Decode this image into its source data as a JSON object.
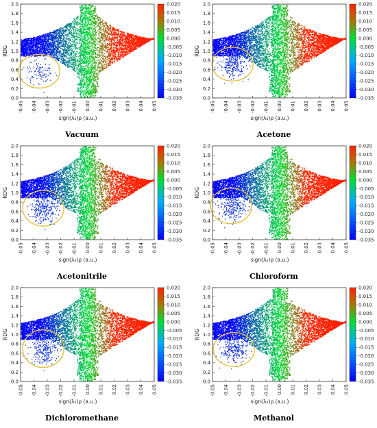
{
  "chart_data": [
    {
      "type": "scatter",
      "title": "Vacuum",
      "xlabel": "sign(λ₂)ρ (a.u.)",
      "ylabel": "RDG",
      "xlim": [
        -0.05,
        0.05
      ],
      "ylim": [
        0,
        2.0
      ],
      "x_ticks": [
        "-0.05",
        "-0.04",
        "-0.03",
        "-0.02",
        "-0.01",
        "0.00",
        "0.01",
        "0.02",
        "0.03",
        "0.04",
        "0.05"
      ],
      "y_ticks": [
        "0.0",
        "0.2",
        "0.4",
        "0.6",
        "0.8",
        "1.0",
        "1.2",
        "1.4",
        "1.6",
        "1.8",
        "2.0"
      ],
      "colorbar": {
        "range": [
          -0.035,
          0.02
        ],
        "ticks": [
          "0.020",
          "0.015",
          "0.010",
          "0.005",
          "0.000",
          "-0.005",
          "-0.010",
          "-0.015",
          "-0.020",
          "-0.025",
          "-0.030",
          "-0.035"
        ]
      },
      "highlight": {
        "center": [
          -0.036,
          0.57
        ],
        "radius_x": 0.011,
        "radius_y": 0.36,
        "color": "#e5c13a"
      },
      "low_rdg_cluster_density": 0.4
    },
    {
      "type": "scatter",
      "title": "Acetone",
      "xlabel": "sign(λ₂)ρ (a.u.)",
      "ylabel": "RDG",
      "xlim": [
        -0.05,
        0.05
      ],
      "ylim": [
        0,
        2.0
      ],
      "x_ticks": [
        "-0.05",
        "-0.04",
        "-0.03",
        "-0.02",
        "-0.01",
        "0.00",
        "0.01",
        "0.02",
        "0.03",
        "0.04",
        "0.05"
      ],
      "y_ticks": [
        "0.0",
        "0.2",
        "0.4",
        "0.6",
        "0.8",
        "1.0",
        "1.2",
        "1.4",
        "1.6",
        "1.8",
        "2.0"
      ],
      "colorbar": {
        "range": [
          -0.035,
          0.02
        ],
        "ticks": [
          "0.020",
          "0.015",
          "0.010",
          "0.005",
          "0.000",
          "-0.005",
          "-0.010",
          "-0.015",
          "-0.020",
          "-0.025",
          "-0.030",
          "-0.035"
        ]
      },
      "highlight": {
        "center": [
          -0.035,
          0.72
        ],
        "radius_x": 0.011,
        "radius_y": 0.36,
        "color": "#e5c13a"
      },
      "low_rdg_cluster_density": 1.0
    },
    {
      "type": "scatter",
      "title": "Acetonitrile",
      "xlabel": "sign(λ₂)ρ (a.u.)",
      "ylabel": "RDG",
      "xlim": [
        -0.05,
        0.05
      ],
      "ylim": [
        0,
        2.0
      ],
      "x_ticks": [
        "-0.05",
        "-0.04",
        "-0.03",
        "-0.02",
        "-0.01",
        "0.00",
        "0.01",
        "0.02",
        "0.03",
        "0.04",
        "0.05"
      ],
      "y_ticks": [
        "0.0",
        "0.2",
        "0.4",
        "0.6",
        "0.8",
        "1.0",
        "1.2",
        "1.4",
        "1.6",
        "1.8",
        "2.0"
      ],
      "colorbar": {
        "range": [
          -0.035,
          0.02
        ],
        "ticks": [
          "0.020",
          "0.015",
          "0.010",
          "0.005",
          "0.000",
          "-0.005",
          "-0.010",
          "-0.015",
          "-0.020",
          "-0.025",
          "-0.030",
          "-0.035"
        ]
      },
      "highlight": {
        "center": [
          -0.033,
          0.67
        ],
        "radius_x": 0.011,
        "radius_y": 0.38,
        "color": "#e5c13a"
      },
      "low_rdg_cluster_density": 1.0
    },
    {
      "type": "scatter",
      "title": "Chloroform",
      "xlabel": "sign(λ₂)ρ (a.u.)",
      "ylabel": "RDG",
      "xlim": [
        -0.05,
        0.05
      ],
      "ylim": [
        0,
        2.0
      ],
      "x_ticks": [
        "-0.05",
        "-0.04",
        "-0.03",
        "-0.02",
        "-0.01",
        "0.00",
        "0.01",
        "0.02",
        "0.03",
        "0.04",
        "0.05"
      ],
      "y_ticks": [
        "0.0",
        "0.2",
        "0.4",
        "0.6",
        "0.8",
        "1.0",
        "1.2",
        "1.4",
        "1.6",
        "1.8",
        "2.0"
      ],
      "colorbar": {
        "range": [
          -0.035,
          0.02
        ],
        "ticks": [
          "0.020",
          "0.015",
          "0.010",
          "0.005",
          "0.000",
          "-0.005",
          "-0.010",
          "-0.015",
          "-0.020",
          "-0.025",
          "-0.030",
          "-0.035"
        ]
      },
      "highlight": {
        "center": [
          -0.036,
          0.72
        ],
        "radius_x": 0.011,
        "radius_y": 0.38,
        "color": "#e5c13a"
      },
      "low_rdg_cluster_density": 1.0
    },
    {
      "type": "scatter",
      "title": "Dichloromethane",
      "xlabel": "sign(λ₂)ρ (a.u.)",
      "ylabel": "RDG",
      "xlim": [
        -0.05,
        0.05
      ],
      "ylim": [
        0,
        2.0
      ],
      "x_ticks": [
        "-0.05",
        "-0.04",
        "-0.03",
        "-0.02",
        "-0.01",
        "0.00",
        "0.01",
        "0.02",
        "0.03",
        "0.04",
        "0.05"
      ],
      "y_ticks": [
        "0.0",
        "0.2",
        "0.4",
        "0.6",
        "0.8",
        "1.0",
        "1.2",
        "1.4",
        "1.6",
        "1.8",
        "2.0"
      ],
      "colorbar": {
        "range": [
          -0.035,
          0.02
        ],
        "ticks": [
          "0.020",
          "0.015",
          "0.010",
          "0.005",
          "0.000",
          "-0.005",
          "-0.010",
          "-0.015",
          "-0.020",
          "-0.025",
          "-0.030",
          "-0.035"
        ]
      },
      "highlight": {
        "center": [
          -0.033,
          0.7
        ],
        "radius_x": 0.011,
        "radius_y": 0.4,
        "color": "#e5c13a"
      },
      "low_rdg_cluster_density": 1.0
    },
    {
      "type": "scatter",
      "title": "Methanol",
      "xlabel": "sign(λ₂)ρ (a.u.)",
      "ylabel": "RDG",
      "xlim": [
        -0.05,
        0.05
      ],
      "ylim": [
        0,
        2.0
      ],
      "x_ticks": [
        "-0.05",
        "-0.04",
        "-0.03",
        "-0.02",
        "-0.01",
        "0.00",
        "0.01",
        "0.02",
        "0.03",
        "0.04",
        "0.05"
      ],
      "y_ticks": [
        "0.0",
        "0.2",
        "0.4",
        "0.6",
        "0.8",
        "1.0",
        "1.2",
        "1.4",
        "1.6",
        "1.8",
        "2.0"
      ],
      "colorbar": {
        "range": [
          -0.035,
          0.02
        ],
        "ticks": [
          "0.020",
          "0.015",
          "0.010",
          "0.005",
          "0.000",
          "-0.005",
          "-0.010",
          "-0.015",
          "-0.020",
          "-0.025",
          "-0.030",
          "-0.035"
        ]
      },
      "highlight": {
        "center": [
          -0.034,
          0.68
        ],
        "radius_x": 0.011,
        "radius_y": 0.36,
        "color": "#e5c13a"
      },
      "low_rdg_cluster_density": 1.0
    }
  ],
  "colormap": [
    "#0000ff",
    "#00dd33",
    "#ff2200"
  ]
}
